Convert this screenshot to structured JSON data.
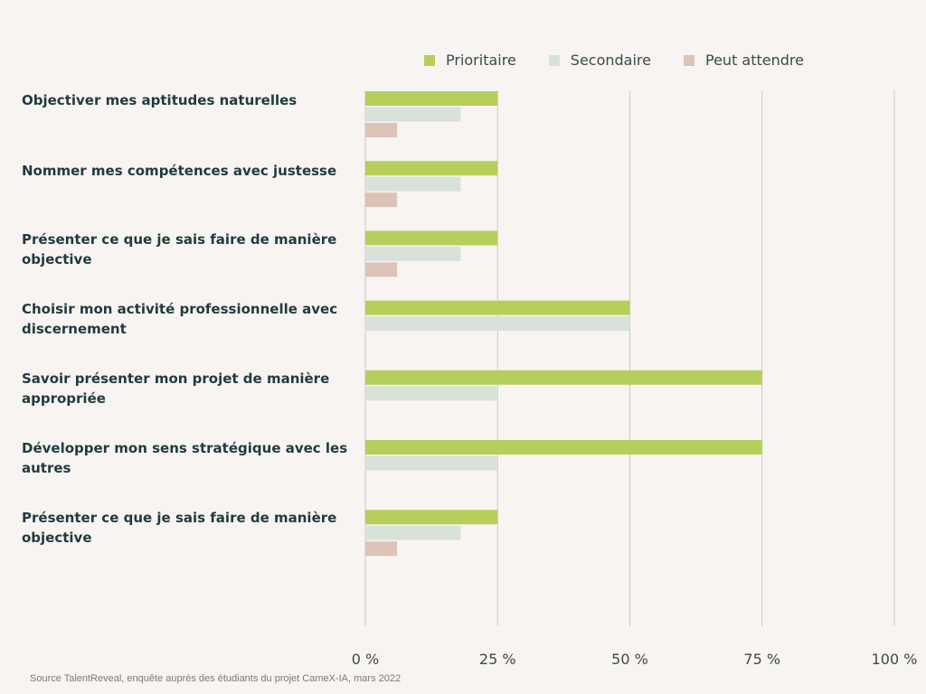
{
  "chart_data": {
    "type": "bar",
    "orientation": "horizontal",
    "categories": [
      "Objectiver mes aptitudes naturelles",
      "Nommer mes compétences avec justesse",
      "Présenter ce que je sais faire de manière objective",
      "Choisir mon activité professionnelle avec discernement",
      "Savoir présenter mon projet de manière appropriée",
      "Développer mon sens stratégique avec les autres",
      "Présenter ce que je sais faire de manière objective"
    ],
    "series": [
      {
        "name": "Prioritaire",
        "color": "#b6cf5a",
        "values": [
          25,
          25,
          25,
          50,
          75,
          75,
          25
        ]
      },
      {
        "name": "Secondaire",
        "color": "#d8e2d9",
        "values": [
          18,
          18,
          18,
          50,
          25,
          25,
          18
        ]
      },
      {
        "name": "Peut attendre",
        "color": "#dcc3b6",
        "values": [
          6,
          6,
          6,
          0,
          0,
          0,
          6
        ]
      }
    ],
    "xlim": [
      0,
      100
    ],
    "xticks": [
      0,
      25,
      50,
      75,
      100
    ],
    "xtick_labels": [
      "0 %",
      "25 %",
      "50 %",
      "75 %",
      "100 %"
    ],
    "grid": true,
    "legend_position": "top-right",
    "source": "Source TalentReveal, enquête auprès des étudiants du projet CameX-IA, mars 2022"
  }
}
